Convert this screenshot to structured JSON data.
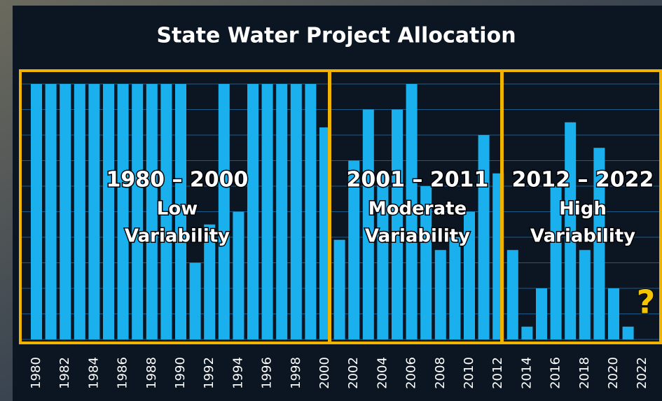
{
  "chart_data": {
    "type": "bar",
    "title": "State Water Project Allocation",
    "categories": [
      "1980",
      null,
      "1982",
      null,
      "1984",
      null,
      "1986",
      null,
      "1988",
      null,
      "1990",
      null,
      "1992",
      null,
      "1994",
      null,
      "1996",
      null,
      "1998",
      null,
      "2000",
      null,
      "2002",
      null,
      "2004",
      null,
      "2006",
      null,
      "2008",
      null,
      "2010",
      null,
      "2012",
      null,
      "2014",
      null,
      "2016",
      null,
      "2018",
      null,
      "2020",
      null,
      "2022"
    ],
    "values": [
      100,
      100,
      100,
      100,
      100,
      100,
      100,
      100,
      100,
      100,
      100,
      30,
      45,
      100,
      50,
      100,
      100,
      100,
      100,
      100,
      83,
      39,
      70,
      90,
      65,
      90,
      100,
      60,
      35,
      40,
      50,
      80,
      65,
      35,
      5,
      20,
      60,
      85,
      35,
      75,
      20,
      5,
      null
    ],
    "color": "#1ab0ee",
    "ylim": [
      0,
      100
    ],
    "yticks": [
      0,
      10,
      20,
      30,
      40,
      50,
      60,
      70,
      80,
      90,
      100
    ],
    "grid": true,
    "annotations": [
      {
        "title": "1980 – 2000",
        "lines": [
          "Low",
          "Variability"
        ]
      },
      {
        "title": "2001 – 2011",
        "lines": [
          "Moderate",
          "Variability"
        ]
      },
      {
        "title": "2012 – 2022",
        "lines": [
          "High",
          "Variability"
        ]
      }
    ],
    "pending_marker": "?"
  }
}
